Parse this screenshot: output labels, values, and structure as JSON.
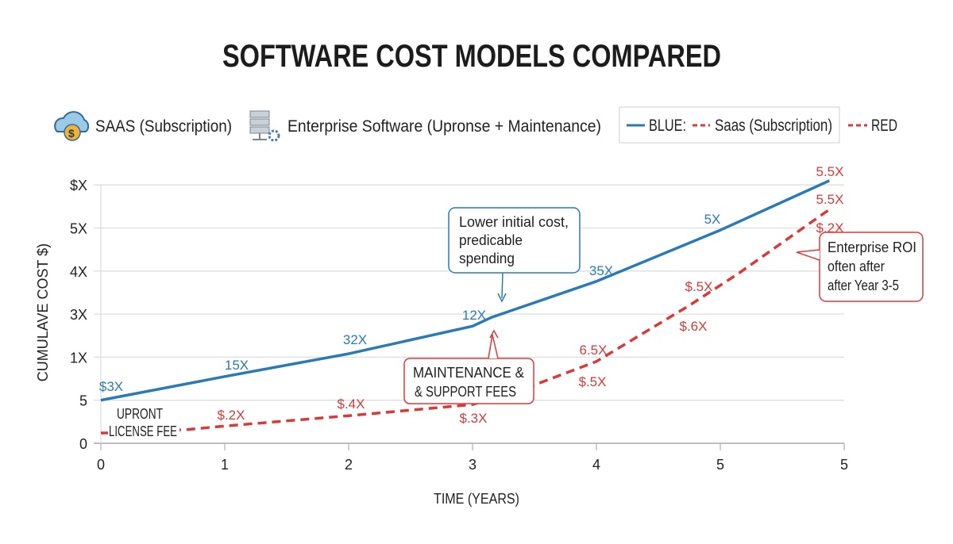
{
  "chart_data": {
    "type": "line",
    "title": "SOFTWARE COST MODELS COMPARED",
    "xlabel": "TIME (YEARS)",
    "ylabel": "CUMULAVE COST $)",
    "x_ticks": [
      "0",
      "1",
      "2",
      "3",
      "4",
      "5",
      "5"
    ],
    "y_ticks": [
      "0",
      "5",
      "1X",
      "3X",
      "4X",
      "5X",
      "$X"
    ],
    "grid": true,
    "legend_position": "top",
    "legend": {
      "item1": "SAAS (Subscription)",
      "item1_icon": "cloud-dollar-icon",
      "item2": "Enterprise Software (Upronse + Maintenance)",
      "item2_icon": "server-gear-icon",
      "box_blue": "BLUE:",
      "box_red": "Saas (Subscription)",
      "red": "RED"
    },
    "series": [
      {
        "color": "#2a7ab5",
        "style": "solid",
        "points": [
          [
            0,
            1.0
          ],
          [
            1,
            1.55
          ],
          [
            2,
            2.08
          ],
          [
            3,
            2.72
          ],
          [
            3.15,
            2.92
          ],
          [
            4,
            3.76
          ],
          [
            5,
            4.95
          ],
          [
            5.88,
            6.1
          ]
        ],
        "labels": [
          "$3X",
          "15X",
          "32X",
          "12X",
          "35X",
          "5X"
        ]
      },
      {
        "color": "#d83a3a",
        "style": "dashed",
        "points": [
          [
            0,
            0.24
          ],
          [
            0.15,
            0.24
          ],
          [
            0.7,
            0.32
          ],
          [
            1,
            0.4
          ],
          [
            2,
            0.64
          ],
          [
            3,
            0.9
          ],
          [
            3.45,
            1.3
          ],
          [
            4,
            1.9
          ],
          [
            4.75,
            3.2
          ],
          [
            5.15,
            3.95
          ],
          [
            5.9,
            5.47
          ]
        ],
        "labels": [
          "$.2X",
          "$.4X",
          "$.3X",
          "6.5X",
          "$.5X",
          "$.5X",
          "$.6X",
          "5.5X",
          "5.5X",
          "$.2X"
        ]
      }
    ],
    "annotations": {
      "upfront": [
        "UPRONT",
        "LICENSE FEE"
      ],
      "saas_callout": [
        "Lower initial cost,",
        "predicable",
        "spending"
      ],
      "maintenance": [
        "MAINTENANCE &",
        "& SUPPORT FEES"
      ],
      "roi": [
        "Enterprise ROI",
        "often after",
        "after Year 3-5"
      ]
    },
    "colors": {
      "blue": "#2a7ab5",
      "red": "#d83a3a"
    }
  }
}
